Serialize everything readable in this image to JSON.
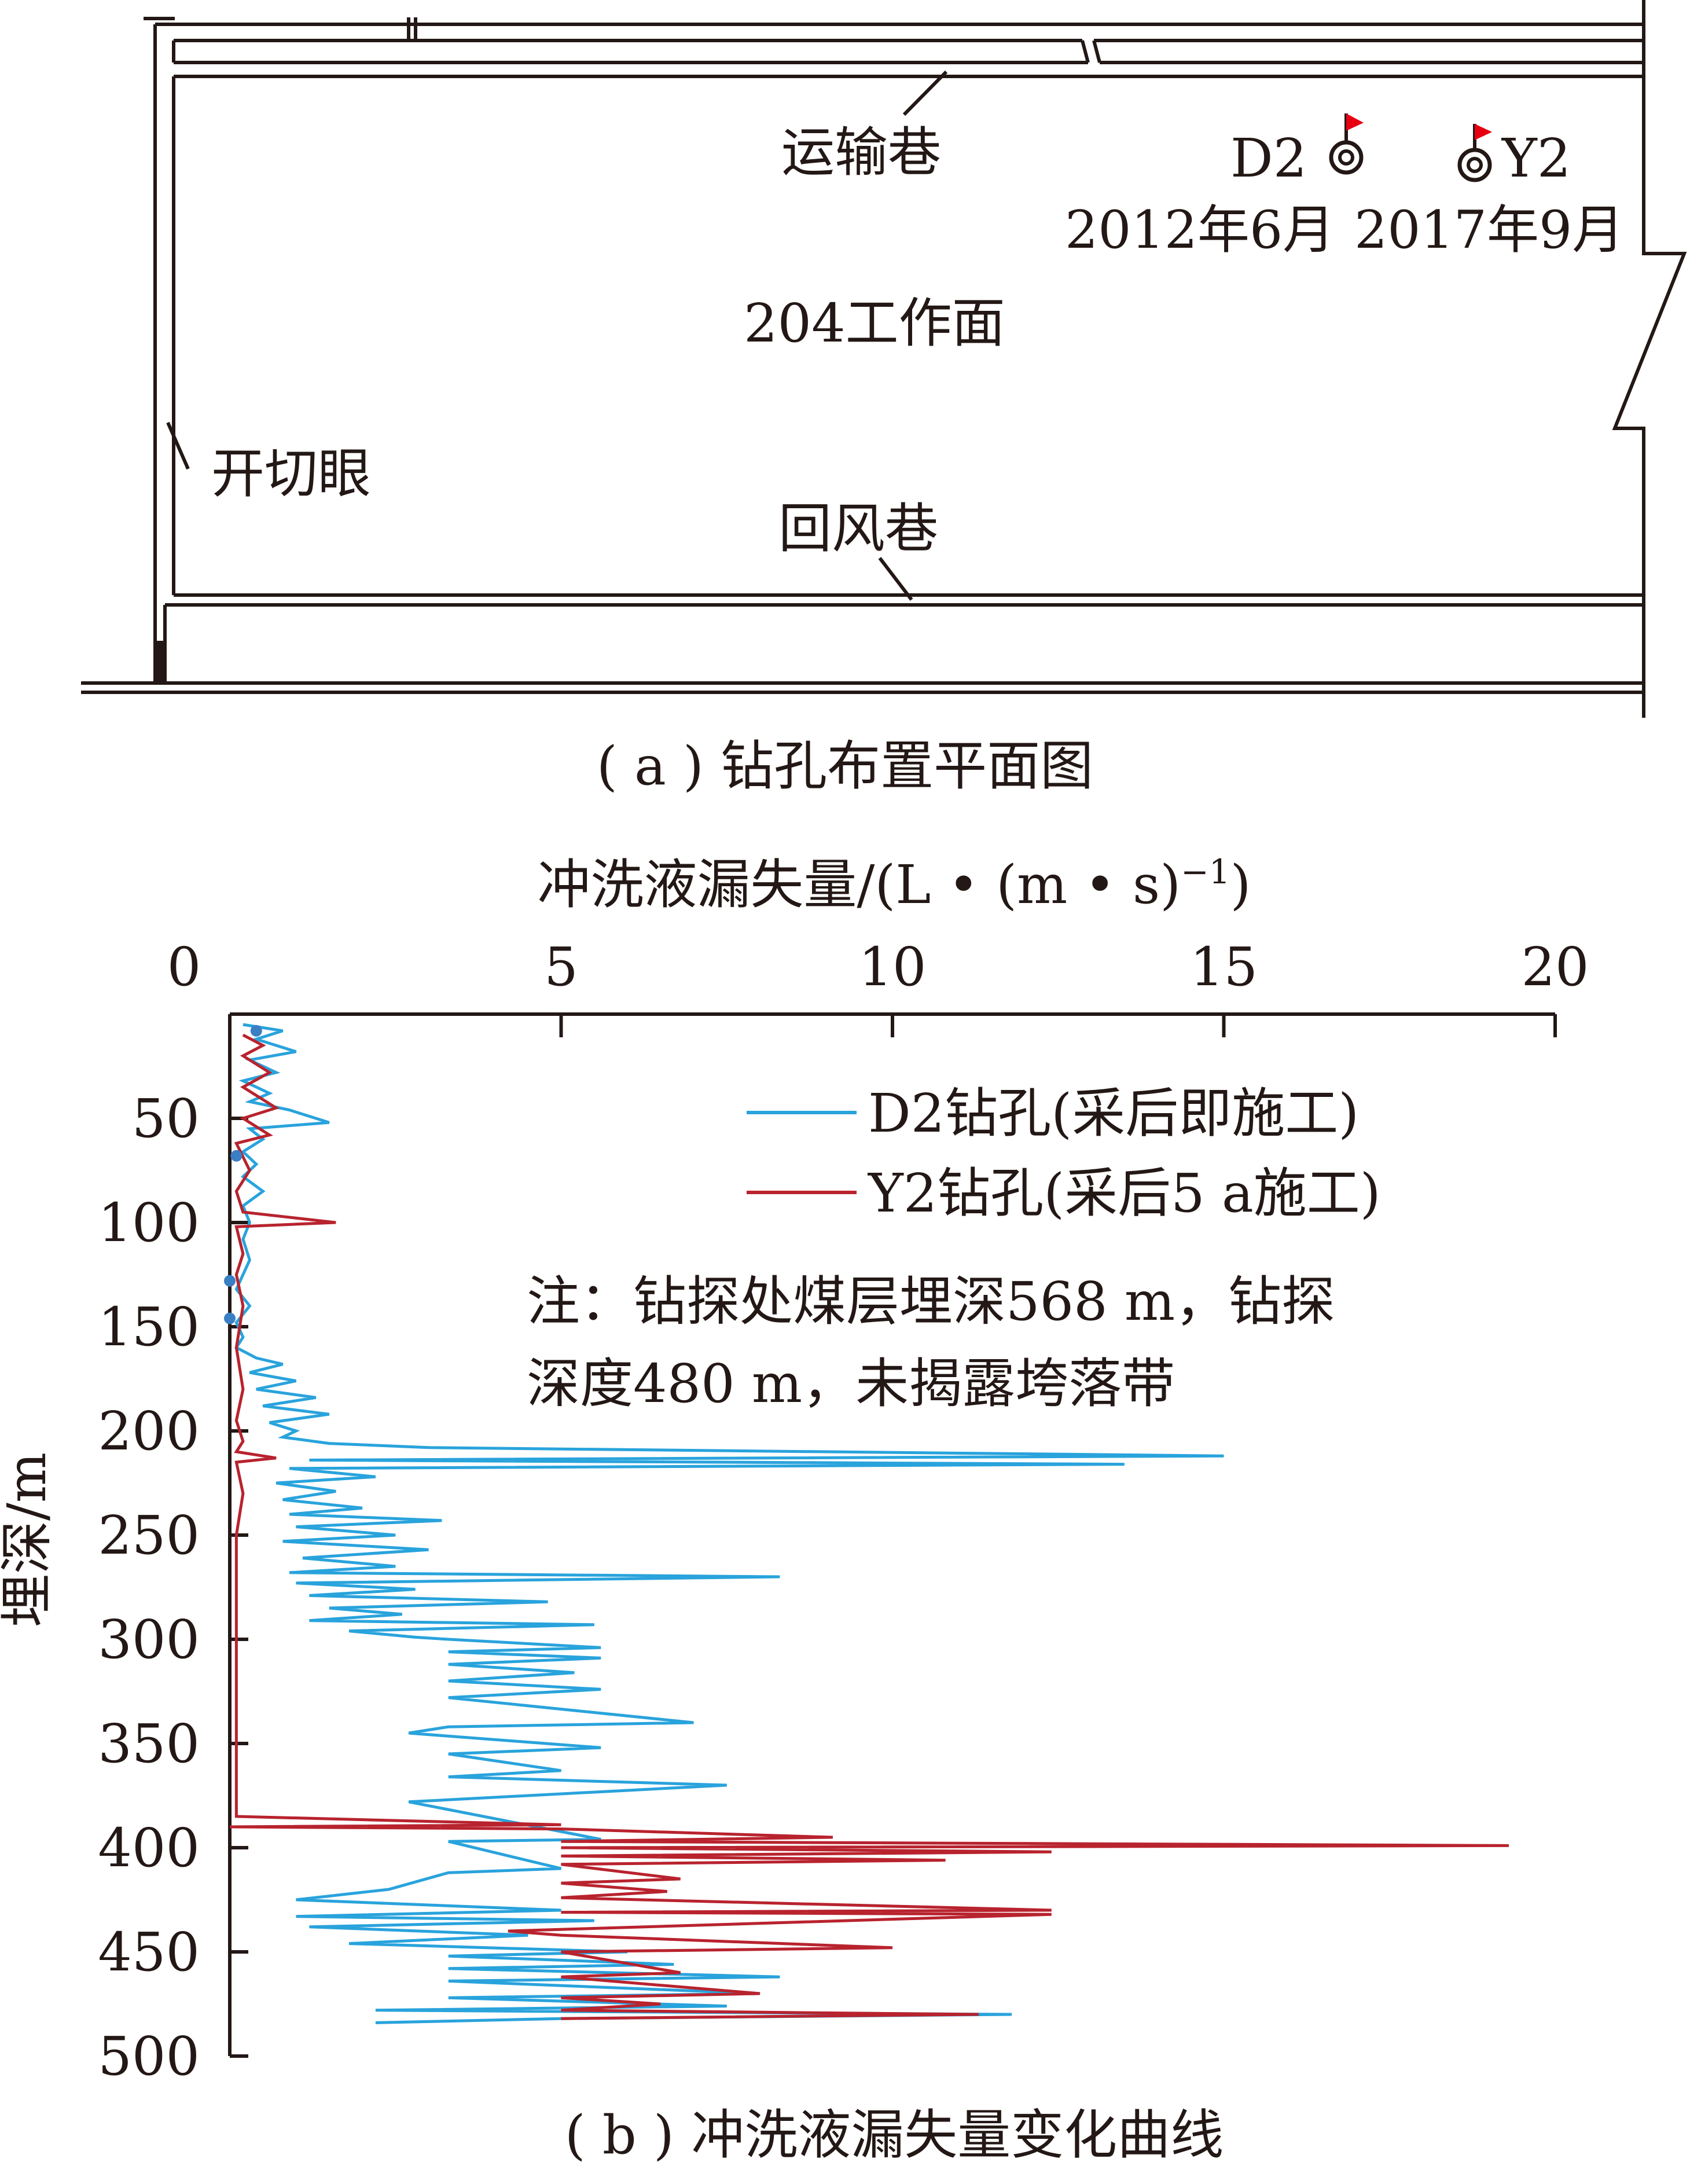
{
  "figure_a": {
    "caption": "( a ) 钻孔布置平面图",
    "labels": {
      "transport": "运输巷",
      "workface": "204工作面",
      "cut": "开切眼",
      "return": "回风巷"
    },
    "boreholes": [
      {
        "name": "D2",
        "date": "2012年6月"
      },
      {
        "name": "Y2",
        "date": "2017年9月"
      }
    ],
    "colors": {
      "line": "#231815",
      "flag": "#e60012"
    }
  },
  "figure_b": {
    "caption": "( b ) 冲洗液漏失量变化曲线",
    "note_line1": "注：钻探处煤层埋深568 m，钻探",
    "note_line2": "深度480 m，未揭露垮落带"
  },
  "chart_data": {
    "type": "line",
    "xlabel": "冲洗液漏失量/(L • (m • s)",
    "xlabel_sup": "−1",
    "xlabel_close": ")",
    "ylabel": "埋深/m",
    "x_axis_position": "top",
    "y_inverted": true,
    "xlim": [
      0,
      20
    ],
    "ylim": [
      0,
      500
    ],
    "x_ticks": [
      0,
      5,
      10,
      15,
      20
    ],
    "y_ticks": [
      50,
      100,
      150,
      200,
      250,
      300,
      350,
      400,
      450,
      500
    ],
    "legend_position": "top-right",
    "series": [
      {
        "name": "D2钻孔(采后即施工)",
        "color": "#29a3dc",
        "points": [
          [
            0.2,
            5
          ],
          [
            0.8,
            8
          ],
          [
            0.4,
            12
          ],
          [
            1.0,
            18
          ],
          [
            0.3,
            22
          ],
          [
            0.7,
            28
          ],
          [
            0.2,
            32
          ],
          [
            0.6,
            38
          ],
          [
            0.3,
            42
          ],
          [
            0.9,
            46
          ],
          [
            1.5,
            52
          ],
          [
            0.3,
            55
          ],
          [
            0.5,
            60
          ],
          [
            0.2,
            66
          ],
          [
            0.4,
            72
          ],
          [
            0.2,
            78
          ],
          [
            0.5,
            85
          ],
          [
            0.2,
            92
          ],
          [
            0.3,
            100
          ],
          [
            0.2,
            108
          ],
          [
            0.3,
            118
          ],
          [
            0.2,
            125
          ],
          [
            0.1,
            132
          ],
          [
            0.3,
            140
          ],
          [
            0.1,
            148
          ],
          [
            0.2,
            155
          ],
          [
            0.1,
            160
          ],
          [
            0.4,
            165
          ],
          [
            0.8,
            168
          ],
          [
            0.3,
            172
          ],
          [
            1.0,
            176
          ],
          [
            0.4,
            180
          ],
          [
            1.3,
            184
          ],
          [
            0.5,
            188
          ],
          [
            1.5,
            192
          ],
          [
            0.6,
            196
          ],
          [
            1.0,
            200
          ],
          [
            0.8,
            203
          ],
          [
            1.5,
            206
          ],
          [
            3.0,
            208
          ],
          [
            15.0,
            212
          ],
          [
            1.2,
            214
          ],
          [
            13.5,
            216
          ],
          [
            0.9,
            218
          ],
          [
            2.2,
            222
          ],
          [
            0.7,
            225
          ],
          [
            1.6,
            229
          ],
          [
            0.8,
            233
          ],
          [
            2.0,
            237
          ],
          [
            0.9,
            240
          ],
          [
            3.2,
            243
          ],
          [
            1.0,
            246
          ],
          [
            2.5,
            250
          ],
          [
            0.8,
            253
          ],
          [
            3.0,
            257
          ],
          [
            1.1,
            261
          ],
          [
            2.5,
            265
          ],
          [
            0.9,
            268
          ],
          [
            8.3,
            270
          ],
          [
            1.0,
            273
          ],
          [
            2.8,
            276
          ],
          [
            1.2,
            279
          ],
          [
            4.8,
            282
          ],
          [
            1.5,
            285
          ],
          [
            2.6,
            288
          ],
          [
            1.2,
            291
          ],
          [
            5.5,
            293
          ],
          [
            1.8,
            296
          ],
          [
            2.8,
            299
          ],
          [
            3.3,
            300
          ],
          [
            5.6,
            304
          ],
          [
            3.3,
            306
          ],
          [
            5.6,
            309
          ],
          [
            3.3,
            312
          ],
          [
            5.2,
            316
          ],
          [
            3.3,
            320
          ],
          [
            5.6,
            324
          ],
          [
            3.3,
            328
          ],
          [
            7.0,
            340
          ],
          [
            3.3,
            342
          ],
          [
            2.7,
            345
          ],
          [
            5.6,
            352
          ],
          [
            3.3,
            355
          ],
          [
            5.0,
            363
          ],
          [
            3.3,
            366
          ],
          [
            7.5,
            370
          ],
          [
            2.7,
            378
          ],
          [
            5.6,
            396
          ],
          [
            3.3,
            397
          ],
          [
            5.0,
            410
          ],
          [
            3.3,
            412
          ],
          [
            2.4,
            420
          ],
          [
            1.0,
            425
          ],
          [
            5.0,
            430
          ],
          [
            1.0,
            433
          ],
          [
            5.5,
            435
          ],
          [
            1.2,
            438
          ],
          [
            4.5,
            442
          ],
          [
            1.8,
            446
          ],
          [
            6.0,
            450
          ],
          [
            3.3,
            452
          ],
          [
            6.7,
            456
          ],
          [
            3.3,
            458
          ],
          [
            8.3,
            462
          ],
          [
            3.3,
            464
          ],
          [
            8.0,
            470
          ],
          [
            3.3,
            472
          ],
          [
            7.5,
            476
          ],
          [
            2.2,
            478
          ],
          [
            11.8,
            480
          ],
          [
            5.0,
            482
          ],
          [
            2.2,
            484
          ]
        ]
      },
      {
        "name": "Y2钻孔(采后5 a施工)",
        "color": "#b8232e",
        "points": [
          [
            0.2,
            10
          ],
          [
            0.5,
            15
          ],
          [
            0.2,
            20
          ],
          [
            0.6,
            28
          ],
          [
            0.2,
            35
          ],
          [
            0.7,
            45
          ],
          [
            0.2,
            50
          ],
          [
            0.6,
            58
          ],
          [
            0.1,
            62
          ],
          [
            0.3,
            75
          ],
          [
            0.1,
            85
          ],
          [
            0.2,
            95
          ],
          [
            1.6,
            100
          ],
          [
            0.1,
            102
          ],
          [
            0.2,
            115
          ],
          [
            0.1,
            125
          ],
          [
            0.2,
            140
          ],
          [
            0.1,
            160
          ],
          [
            0.2,
            180
          ],
          [
            0.1,
            195
          ],
          [
            0.2,
            205
          ],
          [
            0.1,
            210
          ],
          [
            0.7,
            213
          ],
          [
            0.1,
            215
          ],
          [
            0.2,
            230
          ],
          [
            0.1,
            250
          ],
          [
            0.1,
            280
          ],
          [
            0.1,
            300
          ],
          [
            0.1,
            340
          ],
          [
            0.1,
            370
          ],
          [
            0.1,
            385
          ],
          [
            5.0,
            389
          ],
          [
            0.0,
            390
          ],
          [
            5.0,
            391
          ],
          [
            9.1,
            395
          ],
          [
            5.0,
            397
          ],
          [
            19.3,
            399
          ],
          [
            5.0,
            400
          ],
          [
            12.4,
            402
          ],
          [
            5.0,
            404
          ],
          [
            10.8,
            406
          ],
          [
            5.0,
            408
          ],
          [
            6.8,
            415
          ],
          [
            5.0,
            417
          ],
          [
            6.6,
            421
          ],
          [
            5.0,
            424
          ],
          [
            12.4,
            430
          ],
          [
            5.0,
            431
          ],
          [
            12.4,
            432
          ],
          [
            4.2,
            440
          ],
          [
            5.0,
            442
          ],
          [
            10.0,
            448
          ],
          [
            5.0,
            450
          ],
          [
            6.8,
            460
          ],
          [
            5.0,
            462
          ],
          [
            8.0,
            470
          ],
          [
            5.0,
            472
          ],
          [
            6.5,
            475
          ],
          [
            5.0,
            478
          ],
          [
            11.3,
            480
          ],
          [
            5.0,
            482
          ]
        ]
      }
    ]
  }
}
